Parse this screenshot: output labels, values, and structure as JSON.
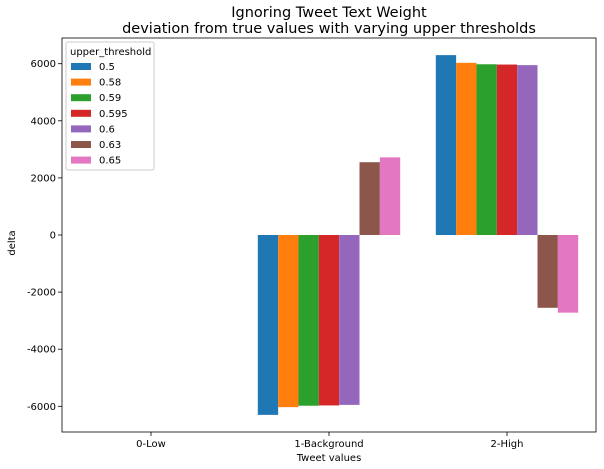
{
  "chart_data": {
    "type": "bar",
    "title": [
      "Ignoring Tweet Text Weight",
      "deviation from true values with varying upper thresholds"
    ],
    "xlabel": "Tweet values",
    "ylabel": "delta",
    "categories": [
      "0-Low",
      "1-Background",
      "2-High"
    ],
    "ylim": [
      -6900,
      6900
    ],
    "yticks": [
      -6000,
      -4000,
      -2000,
      0,
      2000,
      4000,
      6000
    ],
    "grid": false,
    "legend": {
      "title": "upper_threshold",
      "position": "top-left"
    },
    "series": [
      {
        "name": "0.5",
        "color": "#1f77b4",
        "values": [
          0,
          -6300,
          6300
        ]
      },
      {
        "name": "0.58",
        "color": "#ff7f0e",
        "values": [
          0,
          -6030,
          6030
        ]
      },
      {
        "name": "0.59",
        "color": "#2ca02c",
        "values": [
          0,
          -5980,
          5980
        ]
      },
      {
        "name": "0.595",
        "color": "#d62728",
        "values": [
          0,
          -5970,
          5970
        ]
      },
      {
        "name": "0.6",
        "color": "#9467bd",
        "values": [
          0,
          -5950,
          5950
        ]
      },
      {
        "name": "0.63",
        "color": "#8c564b",
        "values": [
          0,
          2550,
          -2550
        ]
      },
      {
        "name": "0.65",
        "color": "#e377c2",
        "values": [
          0,
          2720,
          -2720
        ]
      }
    ]
  }
}
